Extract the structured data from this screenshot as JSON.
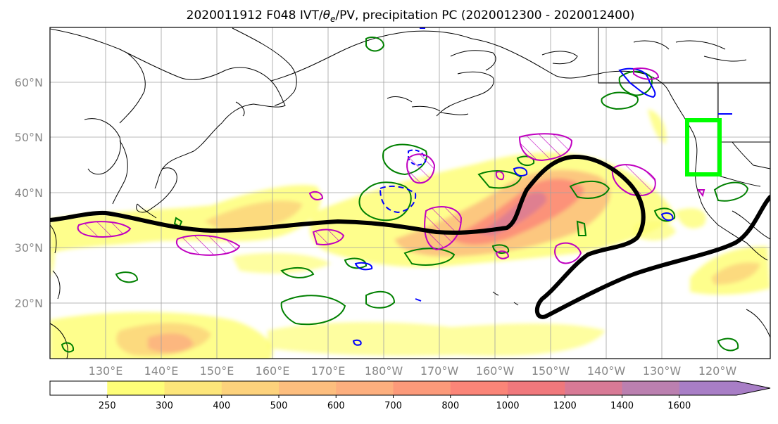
{
  "title": "2020011912 F048 IVT/θe/PV, precipitation PC (2020012300 - 2020012400)",
  "title_parts": {
    "prefix": "2020011912 F048 IVT/",
    "theta": "θ",
    "sub": "e",
    "suffix": "/PV, precipitation PC (2020012300 - 2020012400)"
  },
  "map": {
    "lon_ticks": [
      "130°E",
      "140°E",
      "150°E",
      "160°E",
      "170°E",
      "180°W",
      "170°W",
      "160°W",
      "150°W",
      "140°W",
      "130°W",
      "120°W"
    ],
    "lat_ticks": [
      "60°N",
      "50°N",
      "40°N",
      "30°N",
      "20°N"
    ],
    "lon_range": [
      120,
      250
    ],
    "lat_range": [
      10,
      70
    ],
    "gridlines": true
  },
  "colorbar": {
    "levels": [
      "250",
      "300",
      "400",
      "500",
      "600",
      "700",
      "800",
      "1000",
      "1200",
      "1400",
      "1600"
    ],
    "colors": [
      "#ffffff",
      "#fefe78",
      "#fde67a",
      "#fdd27c",
      "#fdbe7e",
      "#fdaf7e",
      "#fc9a7a",
      "#fb8578",
      "#f0787c",
      "#d87a96",
      "#bb80b0",
      "#a87ec6"
    ],
    "extend": "max"
  },
  "colors": {
    "pv_contour": "#008000",
    "theta_contour": "#0000ff",
    "ivt_line": "#000000",
    "pc_contour": "#c000c0",
    "highlight_box": "#00ff00"
  }
}
